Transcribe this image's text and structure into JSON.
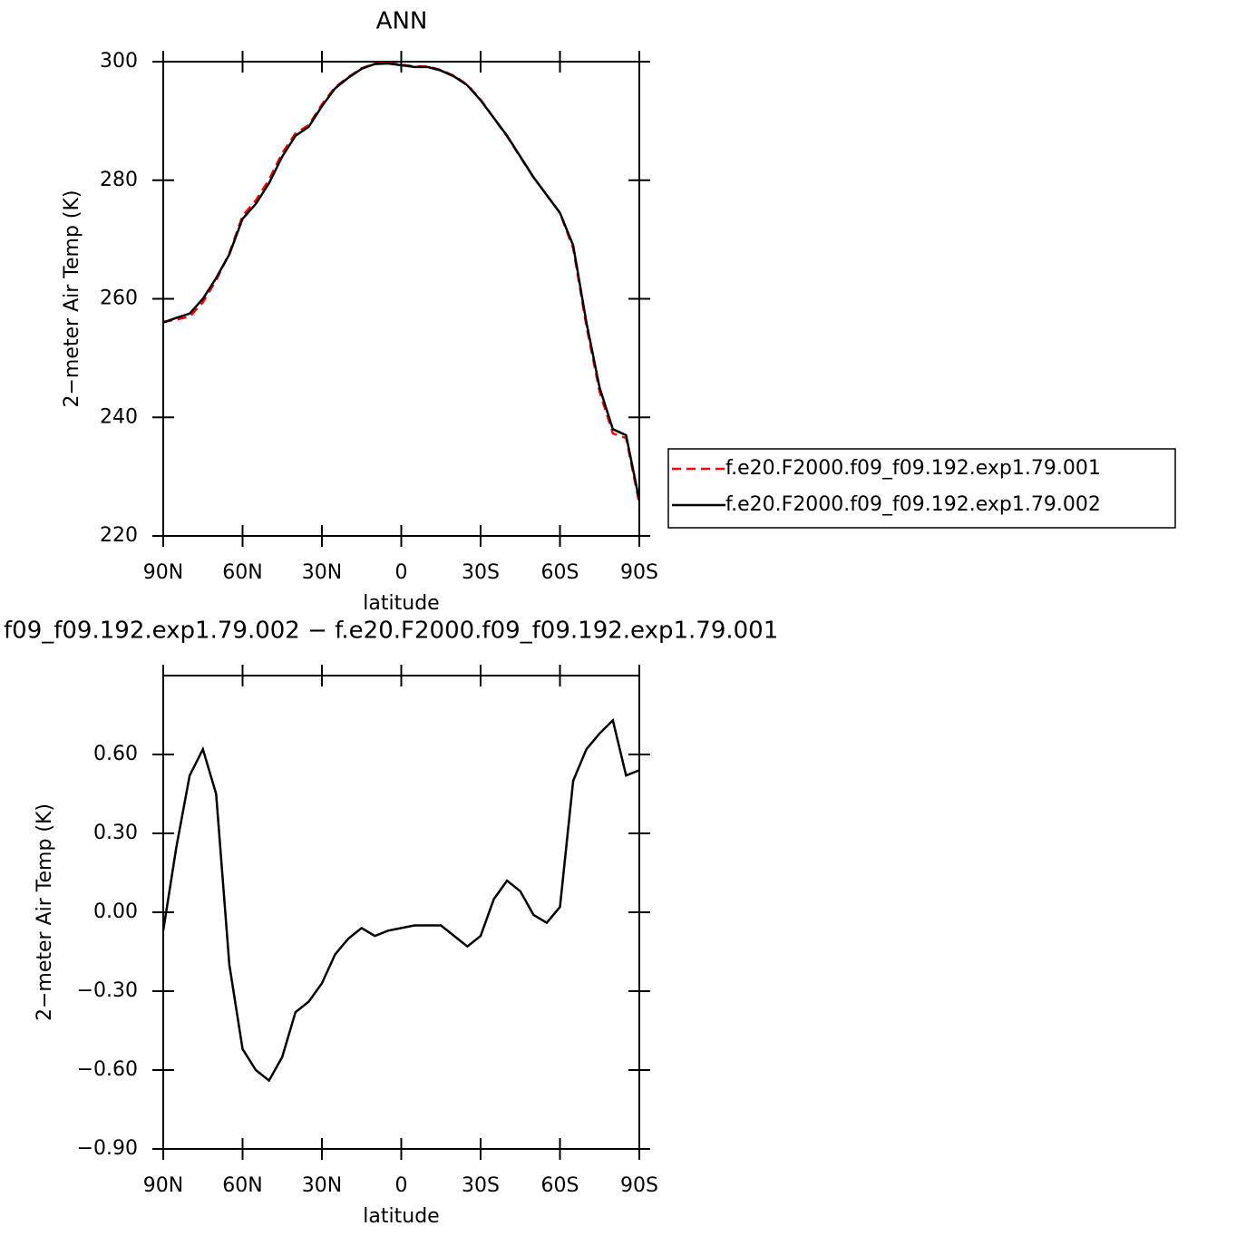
{
  "chart_data": [
    {
      "type": "line",
      "title": "ANN",
      "xlabel": "latitude",
      "ylabel": "2−meter Air Temp (K)",
      "x": [
        90,
        85,
        80,
        75,
        70,
        65,
        60,
        55,
        50,
        45,
        40,
        35,
        30,
        25,
        20,
        15,
        10,
        5,
        0,
        -5,
        -10,
        -15,
        -20,
        -25,
        -30,
        -35,
        -40,
        -45,
        -50,
        -55,
        -60,
        -65,
        -70,
        -75,
        -80,
        -85,
        -90
      ],
      "series": [
        {
          "name": "f.e20.F2000.f09_f09.192.exp1.79.001",
          "color": "#ff0000",
          "line_style": "dashed",
          "values": [
            256.1,
            256.5,
            257.0,
            259.4,
            263.1,
            267.7,
            274.0,
            276.6,
            280.1,
            284.6,
            287.9,
            289.3,
            292.8,
            295.7,
            297.4,
            298.9,
            299.7,
            299.8,
            299.5,
            299.2,
            299.2,
            298.6,
            297.6,
            296.1,
            293.6,
            290.5,
            287.4,
            283.9,
            280.5,
            277.5,
            274.5,
            268.5,
            255.4,
            244.3,
            237.3,
            236.5,
            225.5
          ]
        },
        {
          "name": "f.e20.F2000.f09_f09.192.exp1.79.002",
          "color": "#000000",
          "line_style": "solid",
          "values": [
            256.0,
            256.8,
            257.5,
            260.0,
            263.5,
            267.5,
            273.5,
            276.0,
            279.5,
            284.0,
            287.5,
            289.0,
            292.5,
            295.5,
            297.3,
            298.8,
            299.6,
            299.7,
            299.4,
            299.1,
            299.1,
            298.5,
            297.5,
            296.0,
            293.5,
            290.5,
            287.5,
            284.0,
            280.5,
            277.5,
            274.5,
            269.0,
            256.0,
            245.0,
            238.0,
            237.0,
            226.0
          ]
        }
      ],
      "xlim": [
        90,
        -90
      ],
      "xticks": [
        {
          "value": 90,
          "label": "90N"
        },
        {
          "value": 60,
          "label": "60N"
        },
        {
          "value": 30,
          "label": "30N"
        },
        0,
        {
          "value": -30,
          "label": "30S"
        },
        {
          "value": -60,
          "label": "60S"
        },
        {
          "value": -90,
          "label": "90S"
        }
      ],
      "ylim": [
        220,
        300
      ],
      "yticks": [
        220,
        240,
        260,
        280,
        300
      ],
      "legend": "right"
    },
    {
      "type": "line",
      "title": "f09_f09.192.exp1.79.002 − f.e20.F2000.f09_f09.192.exp1.79.001",
      "xlabel": "latitude",
      "ylabel": "2−meter Air Temp (K)",
      "x": [
        90,
        85,
        80,
        75,
        70,
        65,
        60,
        55,
        50,
        45,
        40,
        35,
        30,
        25,
        20,
        15,
        10,
        5,
        0,
        -5,
        -10,
        -15,
        -20,
        -25,
        -30,
        -35,
        -40,
        -45,
        -50,
        -55,
        -60,
        -65,
        -70,
        -75,
        -80,
        -85,
        -90
      ],
      "values": [
        -0.07,
        0.25,
        0.52,
        0.62,
        0.45,
        -0.2,
        -0.52,
        -0.6,
        -0.64,
        -0.55,
        -0.38,
        -0.34,
        -0.27,
        -0.16,
        -0.1,
        -0.06,
        -0.09,
        -0.07,
        -0.06,
        -0.05,
        -0.05,
        -0.05,
        -0.09,
        -0.13,
        -0.09,
        0.05,
        0.12,
        0.08,
        -0.01,
        -0.04,
        0.02,
        0.5,
        0.62,
        0.68,
        0.73,
        0.52,
        0.54
      ],
      "color": "#000000",
      "xlim": [
        90,
        -90
      ],
      "xticks": [
        {
          "value": 90,
          "label": "90N"
        },
        {
          "value": 60,
          "label": "60N"
        },
        {
          "value": 30,
          "label": "30N"
        },
        0,
        {
          "value": -30,
          "label": "30S"
        },
        {
          "value": -60,
          "label": "60S"
        },
        {
          "value": -90,
          "label": "90S"
        }
      ],
      "ylim": [
        -0.9,
        0.9
      ],
      "yticks": [
        {
          "value": -0.9,
          "label": "−0.90"
        },
        {
          "value": -0.6,
          "label": "−0.60"
        },
        {
          "value": -0.3,
          "label": "−0.30"
        },
        {
          "value": 0,
          "label": "0.00"
        },
        {
          "value": 0.3,
          "label": "0.30"
        },
        {
          "value": 0.6,
          "label": "0.60"
        }
      ]
    }
  ]
}
